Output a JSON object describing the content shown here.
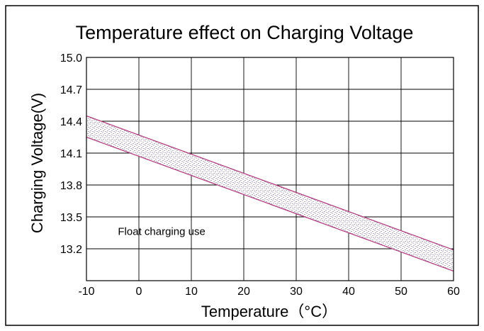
{
  "chart_data": {
    "type": "area",
    "title": "Temperature effect on Charging Voltage",
    "xlabel": "Temperature（°C）",
    "ylabel": "Charging  Voltage(V)",
    "xlim": [
      -10,
      60
    ],
    "ylim": [
      12.9,
      15.0
    ],
    "x_ticks": [
      "-10",
      "0",
      "10",
      "20",
      "30",
      "40",
      "50",
      "60"
    ],
    "y_ticks": [
      "15.0",
      "14.7",
      "14.4",
      "14.1",
      "13.8",
      "13.5",
      "13.2"
    ],
    "grid": true,
    "band": {
      "label": "Float charging use",
      "upper": {
        "x": [
          -10,
          60
        ],
        "y": [
          14.45,
          13.19
        ]
      },
      "lower": {
        "x": [
          -10,
          60
        ],
        "y": [
          14.25,
          12.99
        ]
      },
      "line_color": "#b0407f",
      "fill_pattern": "stipple"
    },
    "annotation": {
      "text": "Float charging use",
      "x": -4,
      "y": 13.33
    }
  }
}
